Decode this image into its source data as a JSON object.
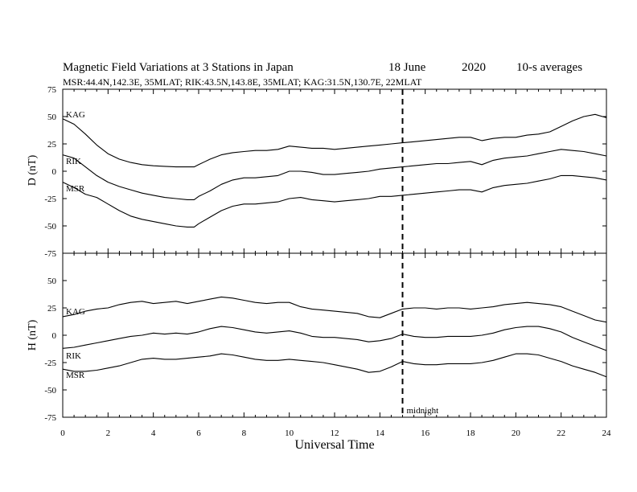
{
  "title": {
    "main": "Magnetic Field Variations at 3 Stations in Japan",
    "date": "18 June",
    "year": "2020",
    "averaging": "10-s averages",
    "subtitle": "MSR:44.4N,142.3E, 35MLAT;  RIK:43.5N,143.8E, 35MLAT;  KAG:31.5N,130.7E, 22MLAT"
  },
  "chart_data": [
    {
      "type": "line",
      "ylabel": "D (nT)",
      "ylim": [
        -75,
        75
      ],
      "yticks": [
        75,
        50,
        25,
        0,
        -25,
        -50,
        -75
      ],
      "xlim": [
        0,
        24
      ],
      "series": [
        {
          "name": "KAG",
          "x": [
            0,
            0.5,
            1,
            1.5,
            2,
            2.5,
            3,
            3.5,
            4,
            4.5,
            5,
            5.5,
            5.8,
            6,
            6.5,
            7,
            7.5,
            8,
            8.5,
            9,
            9.5,
            10,
            10.5,
            11,
            11.5,
            12,
            12.5,
            13,
            13.5,
            14,
            14.5,
            15,
            15.5,
            16,
            16.5,
            17,
            17.5,
            18,
            18.5,
            19,
            19.5,
            20,
            20.5,
            21,
            21.5,
            22,
            22.5,
            23,
            23.5,
            24
          ],
          "values": [
            48,
            43,
            34,
            24,
            16,
            11,
            8,
            6,
            5,
            4.5,
            4,
            4,
            4,
            6,
            11,
            15,
            17,
            18,
            19,
            19,
            20,
            23,
            22,
            21,
            21,
            20,
            21,
            22,
            23,
            24,
            25,
            26,
            27,
            28,
            29,
            30,
            31,
            31,
            28,
            30,
            31,
            31,
            33,
            34,
            36,
            41,
            46,
            50,
            52,
            49
          ]
        },
        {
          "name": "RIK",
          "x": [
            0,
            0.5,
            1,
            1.5,
            2,
            2.5,
            3,
            3.5,
            4,
            4.5,
            5,
            5.5,
            5.8,
            6,
            6.5,
            7,
            7.5,
            8,
            8.5,
            9,
            9.5,
            10,
            10.5,
            11,
            11.5,
            12,
            12.5,
            13,
            13.5,
            14,
            14.5,
            15,
            15.5,
            16,
            16.5,
            17,
            17.5,
            18,
            18.5,
            19,
            19.5,
            20,
            20.5,
            21,
            21.5,
            22,
            22.5,
            23,
            23.5,
            24
          ],
          "values": [
            15,
            12,
            4,
            -4,
            -10,
            -14,
            -17,
            -20,
            -22,
            -24,
            -25,
            -26,
            -26,
            -23,
            -18,
            -12,
            -8,
            -6,
            -6,
            -5,
            -4,
            0,
            0,
            -1,
            -3,
            -3,
            -2,
            -1,
            0,
            2,
            3,
            4,
            5,
            6,
            7,
            7,
            8,
            9,
            6,
            10,
            12,
            13,
            14,
            16,
            18,
            20,
            19,
            18,
            16,
            14
          ]
        },
        {
          "name": "MSR",
          "x": [
            0,
            0.5,
            1,
            1.5,
            2,
            2.5,
            3,
            3.5,
            4,
            4.5,
            5,
            5.5,
            5.8,
            6,
            6.5,
            7,
            7.5,
            8,
            8.5,
            9,
            9.5,
            10,
            10.5,
            11,
            11.5,
            12,
            12.5,
            13,
            13.5,
            14,
            14.5,
            15,
            15.5,
            16,
            16.5,
            17,
            17.5,
            18,
            18.5,
            19,
            19.5,
            20,
            20.5,
            21,
            21.5,
            22,
            22.5,
            23,
            23.5,
            24
          ],
          "values": [
            -10,
            -15,
            -21,
            -24,
            -30,
            -36,
            -41,
            -44,
            -46,
            -48,
            -50,
            -51,
            -51,
            -48,
            -42,
            -36,
            -32,
            -30,
            -30,
            -29,
            -28,
            -25,
            -24,
            -26,
            -27,
            -28,
            -27,
            -26,
            -25,
            -23,
            -23,
            -22,
            -21,
            -20,
            -19,
            -18,
            -17,
            -17,
            -19,
            -15,
            -13,
            -12,
            -11,
            -9,
            -7,
            -4,
            -4,
            -5,
            -6,
            -8
          ]
        }
      ]
    },
    {
      "type": "line",
      "ylabel": "H (nT)",
      "ylim": [
        -75,
        75
      ],
      "yticks": [
        75,
        50,
        25,
        0,
        -25,
        -50,
        -75
      ],
      "xlim": [
        0,
        24
      ],
      "series": [
        {
          "name": "KAG",
          "x": [
            0,
            0.5,
            1,
            1.5,
            2,
            2.5,
            3,
            3.5,
            4,
            4.5,
            5,
            5.5,
            6,
            6.5,
            7,
            7.5,
            8,
            8.5,
            9,
            9.5,
            10,
            10.5,
            11,
            11.5,
            12,
            12.5,
            13,
            13.5,
            14,
            14.5,
            15,
            15.5,
            16,
            16.5,
            17,
            17.5,
            18,
            18.5,
            19,
            19.5,
            20,
            20.5,
            21,
            21.5,
            22,
            22.5,
            23,
            23.5,
            24
          ],
          "values": [
            17,
            19,
            22,
            24,
            25,
            28,
            30,
            31,
            29,
            30,
            31,
            29,
            31,
            33,
            35,
            34,
            32,
            30,
            29,
            30,
            30,
            26,
            24,
            23,
            22,
            21,
            20,
            17,
            16,
            20,
            24,
            25,
            25,
            24,
            25,
            25,
            24,
            25,
            26,
            28,
            29,
            30,
            29,
            28,
            26,
            22,
            18,
            14,
            12
          ]
        },
        {
          "name": "RIK",
          "x": [
            0,
            0.5,
            1,
            1.5,
            2,
            2.5,
            3,
            3.5,
            4,
            4.5,
            5,
            5.5,
            6,
            6.5,
            7,
            7.5,
            8,
            8.5,
            9,
            9.5,
            10,
            10.5,
            11,
            11.5,
            12,
            12.5,
            13,
            13.5,
            14,
            14.5,
            15,
            15.5,
            16,
            16.5,
            17,
            17.5,
            18,
            18.5,
            19,
            19.5,
            20,
            20.5,
            21,
            21.5,
            22,
            22.5,
            23,
            23.5,
            24
          ],
          "values": [
            -12,
            -11,
            -9,
            -7,
            -5,
            -3,
            -1,
            0,
            2,
            1,
            2,
            1,
            3,
            6,
            8,
            7,
            5,
            3,
            2,
            3,
            4,
            2,
            -1,
            -2,
            -2,
            -3,
            -4,
            -6,
            -5,
            -3,
            1,
            -1,
            -2,
            -2,
            -1,
            -1,
            -1,
            0,
            2,
            5,
            7,
            8,
            8,
            6,
            3,
            -2,
            -6,
            -10,
            -14
          ]
        },
        {
          "name": "MSR",
          "x": [
            0,
            0.5,
            1,
            1.5,
            2,
            2.5,
            3,
            3.5,
            4,
            4.5,
            5,
            5.5,
            6,
            6.5,
            7,
            7.5,
            8,
            8.5,
            9,
            9.5,
            10,
            10.5,
            11,
            11.5,
            12,
            12.5,
            13,
            13.5,
            14,
            14.5,
            15,
            15.5,
            16,
            16.5,
            17,
            17.5,
            18,
            18.5,
            19,
            19.5,
            20,
            20.5,
            21,
            21.5,
            22,
            22.5,
            23,
            23.5,
            24
          ],
          "values": [
            -31,
            -33,
            -33,
            -32,
            -30,
            -28,
            -25,
            -22,
            -21,
            -22,
            -22,
            -21,
            -20,
            -19,
            -17,
            -18,
            -20,
            -22,
            -23,
            -23,
            -22,
            -23,
            -24,
            -25,
            -27,
            -29,
            -31,
            -34,
            -33,
            -29,
            -24,
            -26,
            -27,
            -27,
            -26,
            -26,
            -26,
            -25,
            -23,
            -20,
            -17,
            -17,
            -18,
            -21,
            -24,
            -28,
            -31,
            -34,
            -38
          ]
        }
      ]
    }
  ],
  "x_axis": {
    "label": "Universal Time",
    "ticks": [
      0,
      2,
      4,
      6,
      8,
      10,
      12,
      14,
      16,
      18,
      20,
      22,
      24
    ]
  },
  "annotation": {
    "text": "midnight",
    "x": 15
  }
}
